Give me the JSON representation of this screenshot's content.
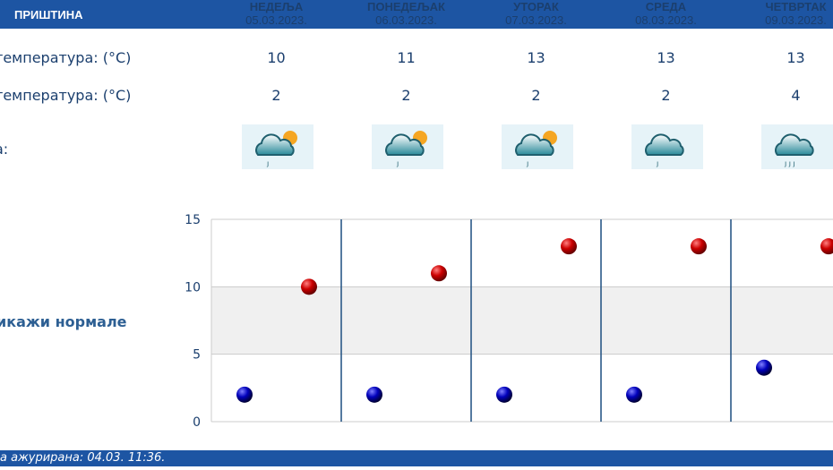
{
  "header": {
    "city": "ПРИШТИНА"
  },
  "days": [
    {
      "name": "НЕДЕЉА",
      "date": "05.03.2023.",
      "max": "10",
      "min": "2",
      "icon": "partly-cloudy-light-rain-icon"
    },
    {
      "name": "ПОНЕДЕЉАК",
      "date": "06.03.2023.",
      "max": "11",
      "min": "2",
      "icon": "partly-cloudy-light-rain-icon"
    },
    {
      "name": "УТОРАК",
      "date": "07.03.2023.",
      "max": "13",
      "min": "2",
      "icon": "partly-cloudy-light-rain-icon"
    },
    {
      "name": "СРЕДА",
      "date": "08.03.2023.",
      "max": "13",
      "min": "2",
      "icon": "cloudy-light-rain-icon"
    },
    {
      "name": "ЧЕТВРТАК",
      "date": "09.03.2023.",
      "max": "13",
      "min": "4",
      "icon": "cloudy-rain-icon"
    }
  ],
  "labels": {
    "max": "температура: (°C)",
    "min": "температура: (°C)",
    "weather": "а:",
    "normals": "икажи нормале"
  },
  "footer": {
    "updated": "а ажурирана:  04.03. 11:36."
  },
  "colors": {
    "bar": "#1d55a3",
    "max_dot": "#cc0000",
    "min_dot": "#0000bb",
    "band": "#f0f0f0"
  },
  "chart_data": {
    "type": "scatter",
    "categories": [
      "05.03.2023.",
      "06.03.2023.",
      "07.03.2023.",
      "08.03.2023.",
      "09.03.2023."
    ],
    "series": [
      {
        "name": "max",
        "values": [
          10,
          11,
          13,
          13,
          13
        ]
      },
      {
        "name": "min",
        "values": [
          2,
          2,
          2,
          2,
          4
        ]
      }
    ],
    "ylim": [
      0,
      15
    ],
    "yticks": [
      "0",
      "5",
      "10",
      "15"
    ],
    "normal_band": [
      5,
      10
    ]
  }
}
